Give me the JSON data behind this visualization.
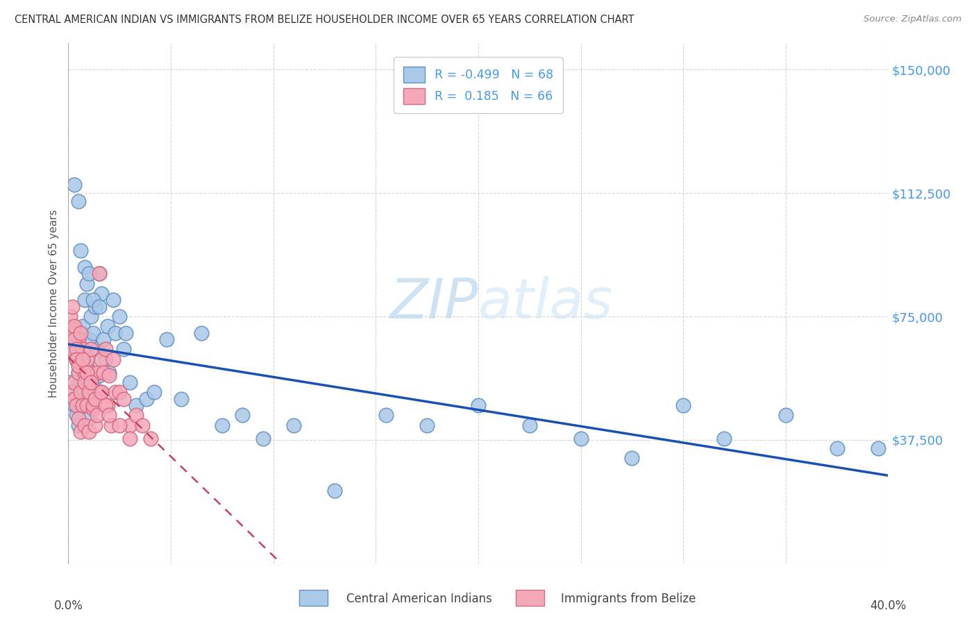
{
  "title": "CENTRAL AMERICAN INDIAN VS IMMIGRANTS FROM BELIZE HOUSEHOLDER INCOME OVER 65 YEARS CORRELATION CHART",
  "source": "Source: ZipAtlas.com",
  "ylabel": "Householder Income Over 65 years",
  "yticks": [
    0,
    37500,
    75000,
    112500,
    150000
  ],
  "ytick_labels": [
    "",
    "$37,500",
    "$75,000",
    "$112,500",
    "$150,000"
  ],
  "xlim": [
    0.0,
    0.4
  ],
  "ylim": [
    0,
    158000
  ],
  "series1_name": "Central American Indians",
  "series2_name": "Immigrants from Belize",
  "series1_color": "#aac8e8",
  "series2_color": "#f5a8b8",
  "series1_edge": "#6090c0",
  "series2_edge": "#d06880",
  "trend1_color": "#1a50b0",
  "trend2_color": "#c84060",
  "background_color": "#ffffff",
  "watermark_color": "#cce5f5",
  "blue_x": [
    0.001,
    0.002,
    0.003,
    0.003,
    0.004,
    0.004,
    0.005,
    0.005,
    0.005,
    0.006,
    0.006,
    0.007,
    0.007,
    0.008,
    0.008,
    0.009,
    0.009,
    0.01,
    0.01,
    0.011,
    0.011,
    0.012,
    0.012,
    0.013,
    0.014,
    0.015,
    0.015,
    0.016,
    0.016,
    0.017,
    0.018,
    0.019,
    0.02,
    0.022,
    0.023,
    0.025,
    0.027,
    0.028,
    0.03,
    0.033,
    0.038,
    0.042,
    0.048,
    0.055,
    0.065,
    0.075,
    0.085,
    0.095,
    0.11,
    0.13,
    0.155,
    0.175,
    0.2,
    0.225,
    0.25,
    0.275,
    0.3,
    0.32,
    0.35,
    0.375,
    0.395,
    0.003,
    0.005,
    0.006,
    0.008,
    0.01,
    0.012,
    0.015
  ],
  "blue_y": [
    55000,
    50000,
    65000,
    48000,
    62000,
    45000,
    58000,
    42000,
    70000,
    55000,
    48000,
    72000,
    52000,
    80000,
    58000,
    85000,
    60000,
    68000,
    44000,
    75000,
    50000,
    70000,
    55000,
    78000,
    65000,
    88000,
    57000,
    82000,
    52000,
    68000,
    62000,
    72000,
    58000,
    80000,
    70000,
    75000,
    65000,
    70000,
    55000,
    48000,
    50000,
    52000,
    68000,
    50000,
    70000,
    42000,
    45000,
    38000,
    42000,
    22000,
    45000,
    42000,
    48000,
    42000,
    38000,
    32000,
    48000,
    38000,
    45000,
    35000,
    35000,
    115000,
    110000,
    95000,
    90000,
    88000,
    80000,
    78000
  ],
  "pink_x": [
    0.001,
    0.001,
    0.002,
    0.002,
    0.003,
    0.003,
    0.004,
    0.004,
    0.005,
    0.005,
    0.005,
    0.006,
    0.006,
    0.007,
    0.007,
    0.008,
    0.008,
    0.009,
    0.009,
    0.01,
    0.01,
    0.011,
    0.011,
    0.012,
    0.012,
    0.013,
    0.013,
    0.014,
    0.015,
    0.015,
    0.016,
    0.017,
    0.018,
    0.019,
    0.02,
    0.021,
    0.022,
    0.023,
    0.025,
    0.027,
    0.03,
    0.033,
    0.036,
    0.04,
    0.001,
    0.002,
    0.002,
    0.003,
    0.003,
    0.004,
    0.004,
    0.005,
    0.006,
    0.007,
    0.008,
    0.009,
    0.01,
    0.011,
    0.012,
    0.013,
    0.014,
    0.016,
    0.018,
    0.02,
    0.025,
    0.03
  ],
  "pink_y": [
    52000,
    68000,
    72000,
    65000,
    55000,
    50000,
    48000,
    62000,
    58000,
    44000,
    68000,
    52000,
    40000,
    65000,
    48000,
    58000,
    42000,
    62000,
    48000,
    55000,
    40000,
    65000,
    52000,
    58000,
    47000,
    52000,
    42000,
    58000,
    88000,
    52000,
    62000,
    58000,
    65000,
    48000,
    57000,
    42000,
    62000,
    52000,
    52000,
    50000,
    42000,
    45000,
    42000,
    38000,
    75000,
    78000,
    70000,
    72000,
    68000,
    65000,
    62000,
    60000,
    70000,
    62000,
    55000,
    58000,
    52000,
    55000,
    48000,
    50000,
    45000,
    52000,
    48000,
    45000,
    42000,
    38000
  ]
}
